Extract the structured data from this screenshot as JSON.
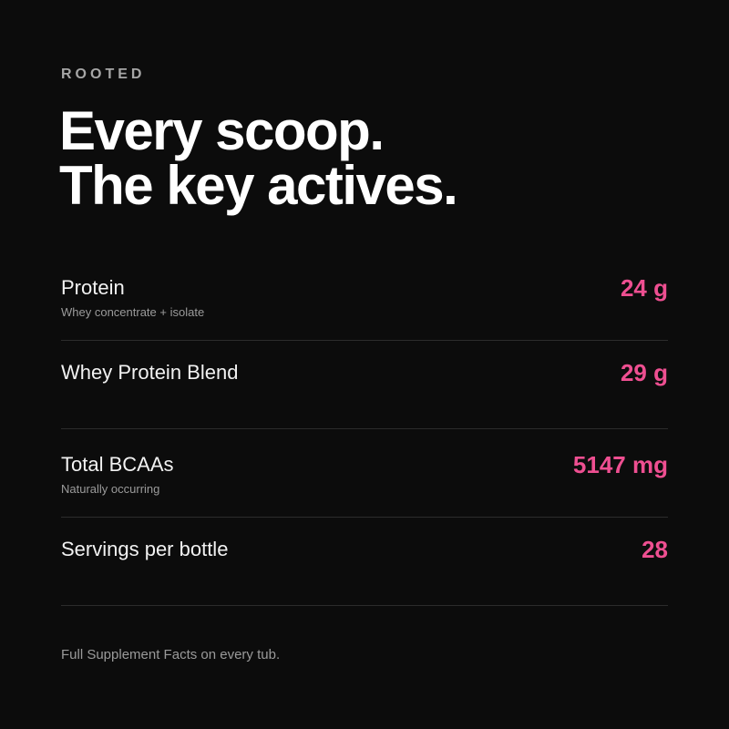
{
  "brand": "ROOTED",
  "headline": {
    "line1": "Every scoop.",
    "line2": "The key actives."
  },
  "rows": [
    {
      "label": "Protein",
      "sub": "Whey concentrate + isolate",
      "value": "24 g"
    },
    {
      "label": "Whey Protein Blend",
      "sub": "",
      "value": "29 g"
    },
    {
      "label": "Total BCAAs",
      "sub": "Naturally occurring",
      "value": "5147 mg"
    },
    {
      "label": "Servings per bottle",
      "sub": "",
      "value": "28"
    }
  ],
  "footnote": "Full Supplement Facts on every tub.",
  "colors": {
    "background": "#0c0c0c",
    "accent": "#ee4f91",
    "muted": "#9b9b9b"
  }
}
